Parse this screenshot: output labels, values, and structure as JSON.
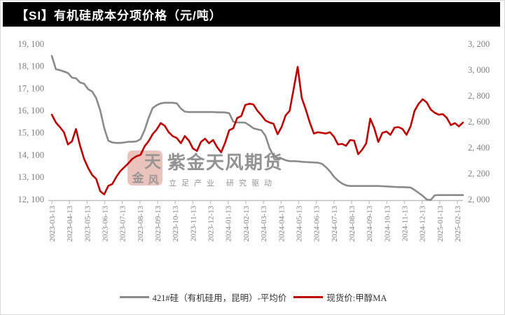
{
  "window": {
    "title": "【SI】有机硅成本分项价格（元/吨）"
  },
  "colors": {
    "title_bar_bg": "#000000",
    "title_text": "#ffffff",
    "gray_series": "#8a8a8a",
    "red_series": "#c00000",
    "axis_line": "#bfbfbf",
    "tick_text": "#808080",
    "watermark_seal": "#e2a79f",
    "watermark_text": "#d8d5d2"
  },
  "legend": {
    "items": [
      {
        "label": "421#硅（有机硅用，昆明）-平均价",
        "color": "#8a8a8a"
      },
      {
        "label": "现货价:甲醇MA",
        "color": "#c00000"
      }
    ]
  },
  "watermark": {
    "seal_char_top": "天",
    "seal_char_bottom": "风",
    "seal_char_side": "金",
    "text": "紫金天风期货",
    "subtext": "立足产业  研究驱动"
  },
  "chart_data": {
    "type": "line",
    "title": "【SI】有机硅成本分项价格（元/吨）",
    "x_start": "2023-03-13",
    "x_end": "2025-02-24",
    "sample_interval": "weekly",
    "grid": false,
    "legend_position": "bottom-center",
    "x_tick_labels": [
      "2023-03-13",
      "2023-04-13",
      "2023-05-13",
      "2023-06-13",
      "2023-07-13",
      "2023-08-13",
      "2023-09-13",
      "2023-10-13",
      "2023-11-13",
      "2023-12-13",
      "2024-01-13",
      "2024-02-13",
      "2024-03-13",
      "2024-04-13",
      "2024-05-13",
      "2024-06-13",
      "2024-07-13",
      "2024-08-13",
      "2024-09-13",
      "2024-10-13",
      "2024-11-13",
      "2024-12-13",
      "2025-01-13",
      "2025-02-13"
    ],
    "left_axis": {
      "range": [
        12100,
        19100
      ],
      "ticks": [
        19100,
        18100,
        17100,
        16100,
        15100,
        14100,
        13100,
        12100
      ],
      "tick_labels": [
        "19, 100",
        "18, 100",
        "17, 100",
        "16, 100",
        "15, 100",
        "14, 100",
        "13, 100",
        "12, 100"
      ]
    },
    "right_axis": {
      "range": [
        2000,
        3200
      ],
      "ticks": [
        3200,
        3000,
        2800,
        2600,
        2400,
        2200,
        2000
      ],
      "tick_labels": [
        "3, 200",
        "3, 000",
        "2, 800",
        "2, 600",
        "2, 400",
        "2, 200",
        "2, 000"
      ]
    },
    "series": [
      {
        "name": "421#硅（有机硅用，昆明）-平均价",
        "axis": "left",
        "color": "#8a8a8a",
        "values": [
          18600,
          18000,
          17960,
          17900,
          17830,
          17620,
          17590,
          17400,
          17350,
          17100,
          17000,
          16700,
          16150,
          15350,
          14780,
          14700,
          14680,
          14680,
          14700,
          14730,
          14730,
          14750,
          14850,
          15250,
          15800,
          16250,
          16380,
          16460,
          16490,
          16490,
          16490,
          16460,
          16230,
          16090,
          16070,
          16070,
          16070,
          16070,
          16070,
          16070,
          16070,
          16060,
          16060,
          16050,
          16020,
          15640,
          15600,
          15600,
          15590,
          15470,
          15340,
          15290,
          15250,
          15000,
          14450,
          14100,
          14000,
          13980,
          13900,
          13860,
          13860,
          13850,
          13830,
          13820,
          13810,
          13800,
          13790,
          13740,
          13590,
          13400,
          13160,
          12980,
          12850,
          12770,
          12740,
          12740,
          12740,
          12740,
          12740,
          12740,
          12740,
          12740,
          12730,
          12720,
          12710,
          12700,
          12690,
          12690,
          12680,
          12670,
          12560,
          12430,
          12300,
          12130,
          12110,
          12320,
          12330,
          12330,
          12330,
          12330,
          12330,
          12330,
          12330
        ]
      },
      {
        "name": "现货价:甲醇MA",
        "axis": "right",
        "color": "#c00000",
        "values": [
          2660,
          2600,
          2565,
          2525,
          2430,
          2455,
          2550,
          2420,
          2320,
          2250,
          2195,
          2165,
          2070,
          2045,
          2110,
          2125,
          2180,
          2225,
          2255,
          2285,
          2320,
          2340,
          2350,
          2415,
          2455,
          2510,
          2545,
          2595,
          2575,
          2525,
          2495,
          2480,
          2440,
          2495,
          2460,
          2400,
          2380,
          2450,
          2475,
          2440,
          2465,
          2410,
          2370,
          2445,
          2540,
          2555,
          2635,
          2650,
          2735,
          2745,
          2740,
          2690,
          2655,
          2615,
          2600,
          2590,
          2510,
          2565,
          2655,
          2690,
          2860,
          3030,
          2790,
          2700,
          2600,
          2515,
          2525,
          2520,
          2515,
          2525,
          2490,
          2430,
          2435,
          2420,
          2465,
          2460,
          2355,
          2390,
          2440,
          2630,
          2555,
          2450,
          2520,
          2530,
          2505,
          2560,
          2565,
          2550,
          2505,
          2570,
          2690,
          2745,
          2780,
          2755,
          2700,
          2675,
          2660,
          2665,
          2635,
          2580,
          2595,
          2570,
          2600
        ]
      }
    ]
  }
}
